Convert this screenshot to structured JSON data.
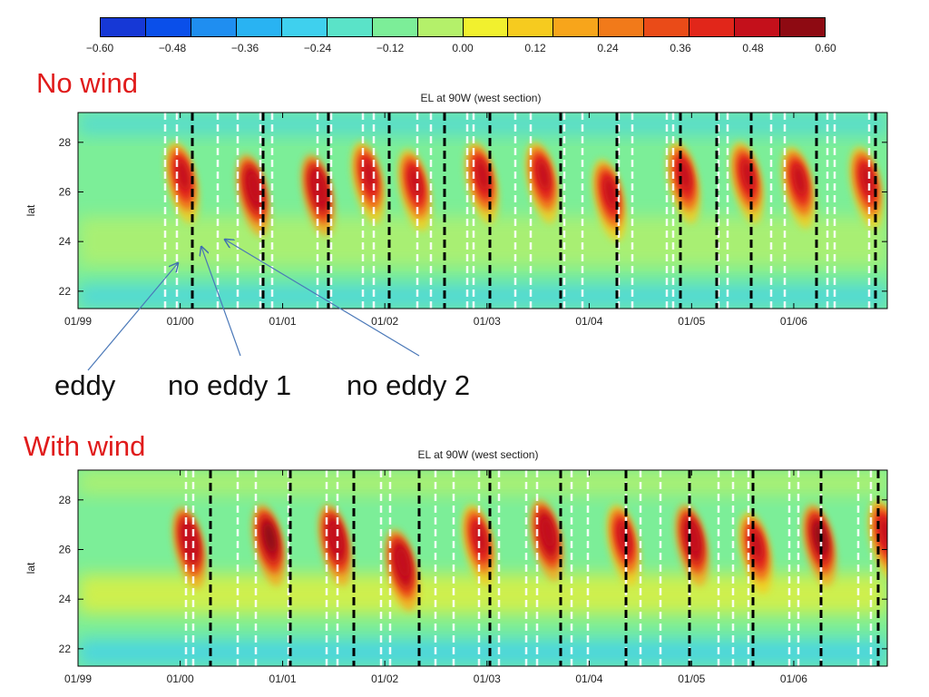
{
  "colorbar": {
    "tick_labels": [
      "−0.60",
      "−0.48",
      "−0.36",
      "−0.24",
      "−0.12",
      "0.00",
      "0.12",
      "0.24",
      "0.36",
      "0.48",
      "0.60"
    ],
    "colors": [
      "#1638d6",
      "#0a4fea",
      "#1f8ef0",
      "#29b3f2",
      "#3fd0ee",
      "#5ae3c8",
      "#7cee98",
      "#b4f06a",
      "#f1f02e",
      "#f6cb1f",
      "#f7a51b",
      "#f17a1a",
      "#ea4b18",
      "#e1261a",
      "#c4101b",
      "#8e0a12"
    ]
  },
  "panels": [
    {
      "label": "No wind",
      "title": "EL at 90W (west section)"
    },
    {
      "label": "With wind",
      "title": "EL at 90W (west section)"
    }
  ],
  "annotations": {
    "eddy": "eddy",
    "no_eddy_1": "no eddy 1",
    "no_eddy_2": "no eddy 2"
  },
  "chart_data": [
    {
      "type": "heatmap",
      "title": "EL at 90W (west section)",
      "ylabel": "lat",
      "xlabel": "",
      "x_ticks": [
        "01/99",
        "01/00",
        "01/01",
        "01/02",
        "01/03",
        "01/04",
        "01/05",
        "01/06"
      ],
      "y_ticks": [
        22,
        24,
        26,
        28
      ],
      "ylim": [
        21.3,
        29.2
      ],
      "xlim": [
        "1999-01-01",
        "2006-12-01"
      ],
      "color_range": [
        -0.6,
        0.6
      ],
      "eddy_events": [
        {
          "date": "2000-01-10",
          "lat": 26.6,
          "peak": 0.45
        },
        {
          "date": "2000-09-20",
          "lat": 26.1,
          "peak": 0.5
        },
        {
          "date": "2001-05-10",
          "lat": 26.1,
          "peak": 0.5
        },
        {
          "date": "2001-11-05",
          "lat": 26.6,
          "peak": 0.45
        },
        {
          "date": "2002-04-20",
          "lat": 26.3,
          "peak": 0.48
        },
        {
          "date": "2002-12-15",
          "lat": 26.6,
          "peak": 0.45
        },
        {
          "date": "2003-07-20",
          "lat": 26.6,
          "peak": 0.45
        },
        {
          "date": "2004-03-15",
          "lat": 25.9,
          "peak": 0.48
        },
        {
          "date": "2004-12-05",
          "lat": 26.6,
          "peak": 0.45
        },
        {
          "date": "2005-07-20",
          "lat": 26.6,
          "peak": 0.48
        },
        {
          "date": "2006-01-20",
          "lat": 26.4,
          "peak": 0.48
        },
        {
          "date": "2006-09-20",
          "lat": 26.4,
          "peak": 0.45
        }
      ]
    },
    {
      "type": "heatmap",
      "title": "EL at 90W (west section)",
      "ylabel": "lat",
      "xlabel": "",
      "x_ticks": [
        "01/99",
        "01/00",
        "01/01",
        "01/02",
        "01/03",
        "01/04",
        "01/05",
        "01/06"
      ],
      "y_ticks": [
        22,
        24,
        26,
        28
      ],
      "ylim": [
        21.3,
        29.2
      ],
      "xlim": [
        "1999-01-01",
        "2006-12-01"
      ],
      "color_range": [
        -0.6,
        0.6
      ],
      "eddy_events": [
        {
          "date": "2000-02-05",
          "lat": 26.3,
          "peak": 0.5
        },
        {
          "date": "2000-11-15",
          "lat": 26.4,
          "peak": 0.55
        },
        {
          "date": "2001-07-10",
          "lat": 26.4,
          "peak": 0.5
        },
        {
          "date": "2002-03-05",
          "lat": 25.4,
          "peak": 0.5
        },
        {
          "date": "2002-12-05",
          "lat": 26.4,
          "peak": 0.48
        },
        {
          "date": "2003-08-05",
          "lat": 26.6,
          "peak": 0.5
        },
        {
          "date": "2004-05-05",
          "lat": 26.4,
          "peak": 0.45
        },
        {
          "date": "2005-01-05",
          "lat": 26.4,
          "peak": 0.5
        },
        {
          "date": "2005-08-20",
          "lat": 26.1,
          "peak": 0.48
        },
        {
          "date": "2006-04-05",
          "lat": 26.4,
          "peak": 0.55
        },
        {
          "date": "2006-11-25",
          "lat": 26.6,
          "peak": 0.45
        }
      ]
    }
  ]
}
